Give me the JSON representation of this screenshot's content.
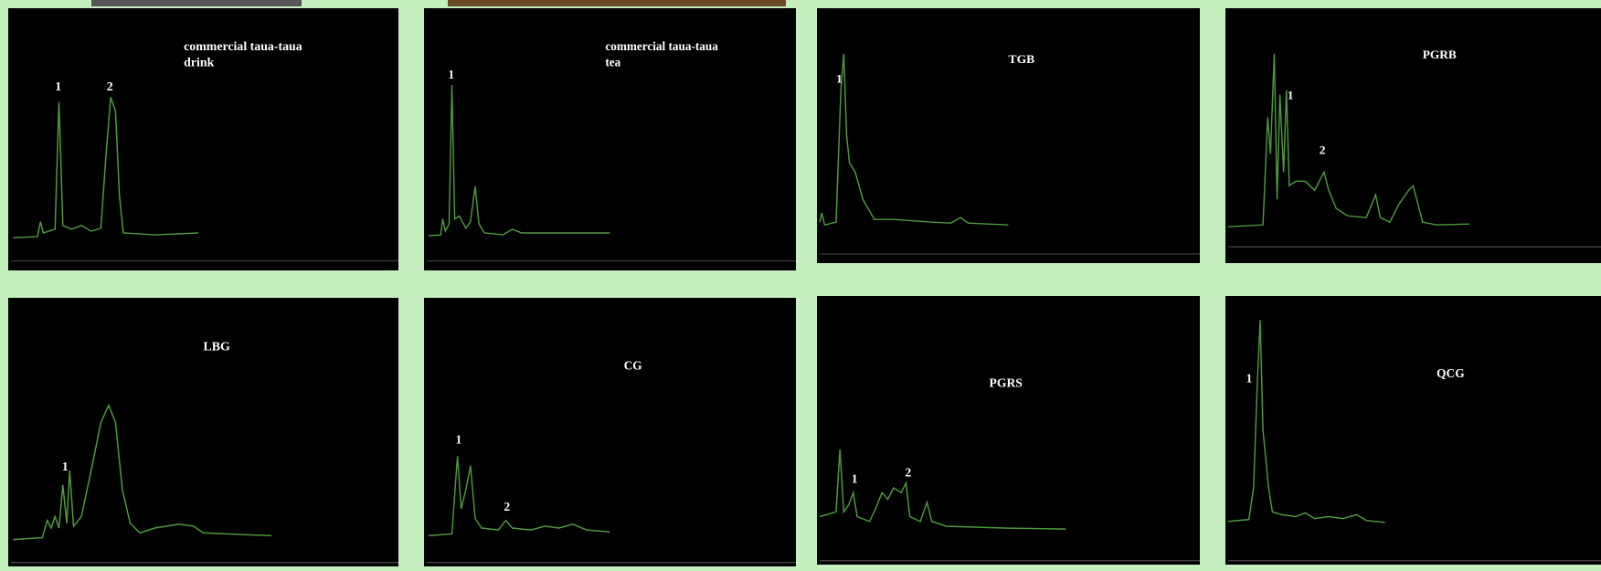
{
  "panels": [
    {
      "title_lines": [
        "commercial taua-taua",
        "drink"
      ],
      "peak_labels": [
        "1",
        "2"
      ]
    },
    {
      "title_lines": [
        "commercial taua-taua",
        "tea"
      ],
      "peak_labels": [
        "1"
      ]
    },
    {
      "title_lines": [
        "TGB"
      ],
      "peak_labels": [
        "1"
      ]
    },
    {
      "title_lines": [
        "PGRB"
      ],
      "peak_labels": [
        "1",
        "2"
      ]
    },
    {
      "title_lines": [
        "LBG"
      ],
      "peak_labels": [
        "1"
      ]
    },
    {
      "title_lines": [
        "CG"
      ],
      "peak_labels": [
        "1",
        "2"
      ]
    },
    {
      "title_lines": [
        "PGRS"
      ],
      "peak_labels": [
        "1",
        "2"
      ]
    },
    {
      "title_lines": [
        "QCG"
      ],
      "peak_labels": [
        "1"
      ]
    }
  ]
}
